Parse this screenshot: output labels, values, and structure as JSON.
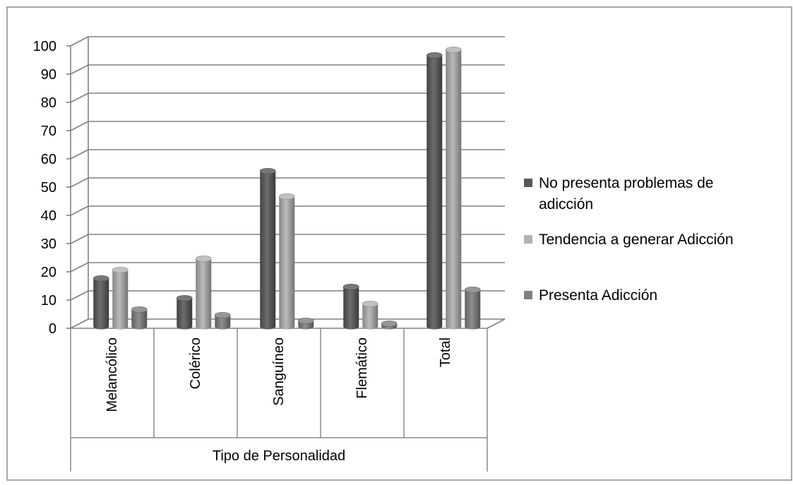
{
  "chart_data": {
    "type": "bar",
    "title": "",
    "xlabel": "Tipo de Personalidad",
    "ylabel": "",
    "ylim": [
      0,
      100
    ],
    "yticks": [
      0,
      10,
      20,
      30,
      40,
      50,
      60,
      70,
      80,
      90,
      100
    ],
    "ytick_labels": [
      "0",
      "10",
      "20",
      "30",
      "40",
      "50",
      "60",
      "70",
      "80",
      "90",
      "100"
    ],
    "categories": [
      "Melancólico",
      "Colérico",
      "Sanguíneo",
      "Flemático",
      "Total"
    ],
    "series": [
      {
        "name": "No presenta problemas de adicción",
        "values": [
          17,
          10,
          55,
          14,
          96
        ],
        "color": "#595959"
      },
      {
        "name": "Tendencia a generar Adicción",
        "values": [
          20,
          24,
          46,
          8,
          98
        ],
        "color": "#b2b2b2"
      },
      {
        "name": "Presenta Adicción",
        "values": [
          6,
          4,
          2,
          1,
          13
        ],
        "color": "#808080"
      }
    ],
    "grid": true,
    "legend_position": "right",
    "style": "3d-cylinder"
  }
}
